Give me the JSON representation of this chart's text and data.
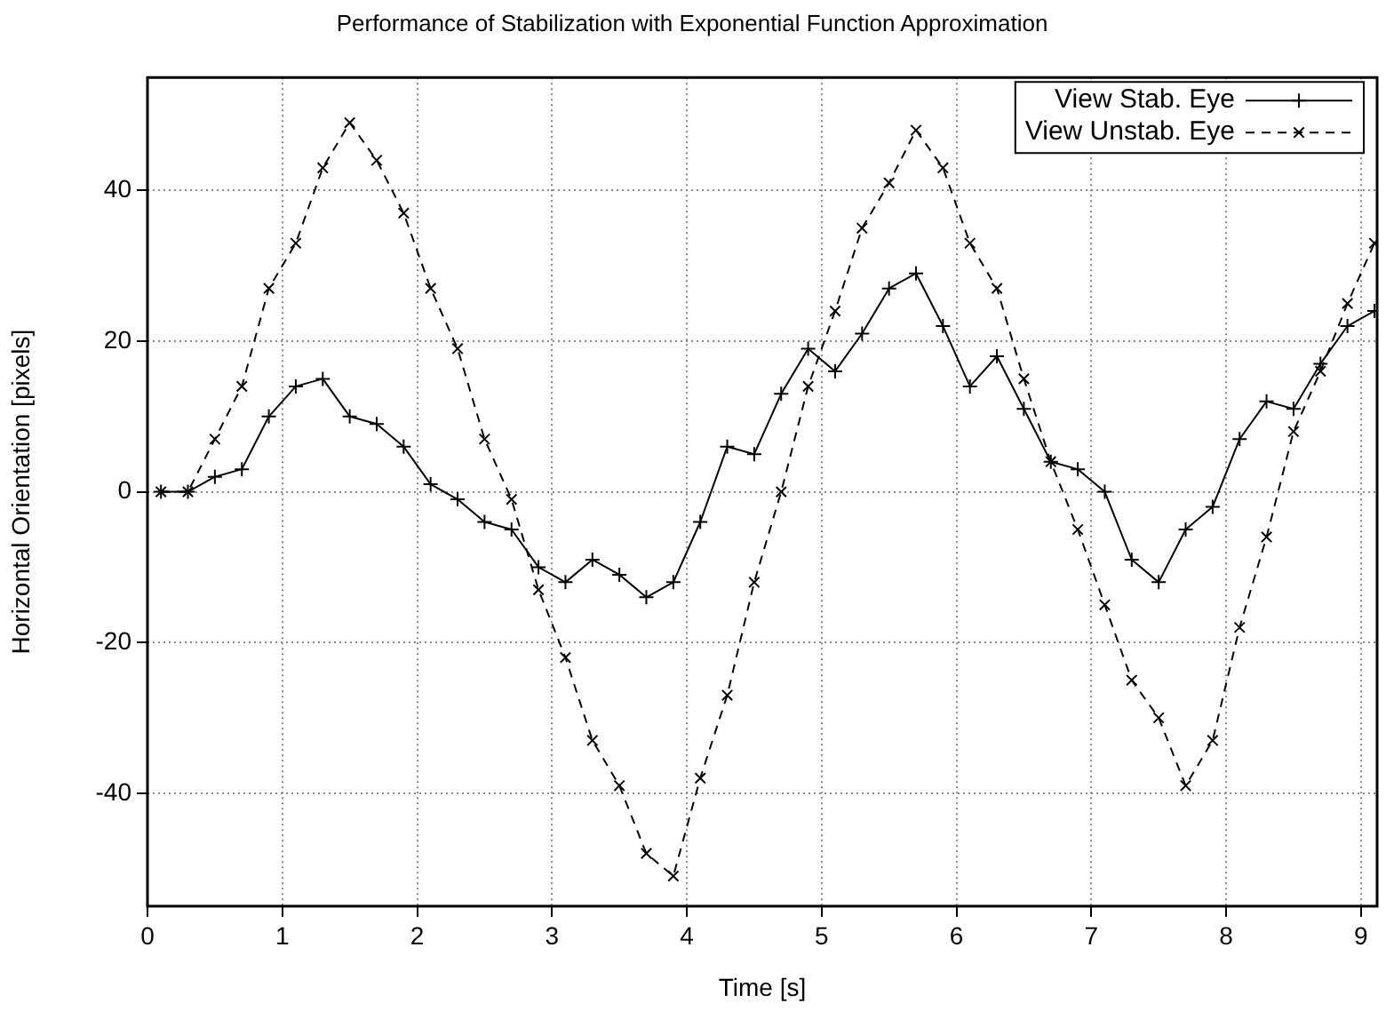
{
  "chart_data": {
    "type": "line",
    "title": "Performance of Stabilization with Exponential Function Approximation",
    "xlabel": "Time [s]",
    "ylabel": "Horizontal Orientation [pixels]",
    "x": [
      0.1,
      0.3,
      0.5,
      0.7,
      0.9,
      1.1,
      1.3,
      1.5,
      1.7,
      1.9,
      2.1,
      2.3,
      2.5,
      2.7,
      2.9,
      3.1,
      3.3,
      3.5,
      3.7,
      3.9,
      4.1,
      4.3,
      4.5,
      4.7,
      4.9,
      5.1,
      5.3,
      5.5,
      5.7,
      5.9,
      6.1,
      6.3,
      6.5,
      6.7,
      6.9,
      7.1,
      7.3,
      7.5,
      7.7,
      7.9,
      8.1,
      8.3,
      8.5,
      8.7,
      8.9,
      9.1
    ],
    "series": [
      {
        "name": "View Stab. Eye",
        "color": "#000000",
        "marker": "cross",
        "line_style": "solid",
        "values": [
          0,
          0,
          2,
          3,
          10,
          14,
          15,
          10,
          9,
          6,
          1,
          -1,
          -4,
          -5,
          -10,
          -12,
          -9,
          -11,
          -14,
          -12,
          -4,
          6,
          5,
          13,
          19,
          16,
          21,
          27,
          29,
          22,
          14,
          18,
          11,
          4,
          3,
          0,
          -9,
          -12,
          -5,
          -2,
          7,
          12,
          11,
          17,
          22,
          24
        ]
      },
      {
        "name": "View Unstab. Eye",
        "color": "#000000",
        "marker": "x",
        "line_style": "dashed",
        "values": [
          0,
          0,
          7,
          14,
          27,
          33,
          43,
          49,
          44,
          37,
          27,
          19,
          7,
          -1,
          -13,
          -22,
          -33,
          -39,
          -48,
          -51,
          -38,
          -27,
          -12,
          0,
          14,
          24,
          35,
          41,
          48,
          43,
          33,
          27,
          15,
          4,
          -5,
          -15,
          -25,
          -30,
          -39,
          -33,
          -18,
          -6,
          8,
          16,
          25,
          33
        ]
      }
    ],
    "xlim": [
      0,
      9.12
    ],
    "xticks": [
      0,
      1,
      2,
      3,
      4,
      5,
      6,
      7,
      8,
      9
    ],
    "ylim": [
      -55,
      55
    ],
    "yticks": [
      -40,
      -20,
      0,
      20,
      40
    ],
    "grid": true,
    "legend": "top right"
  }
}
